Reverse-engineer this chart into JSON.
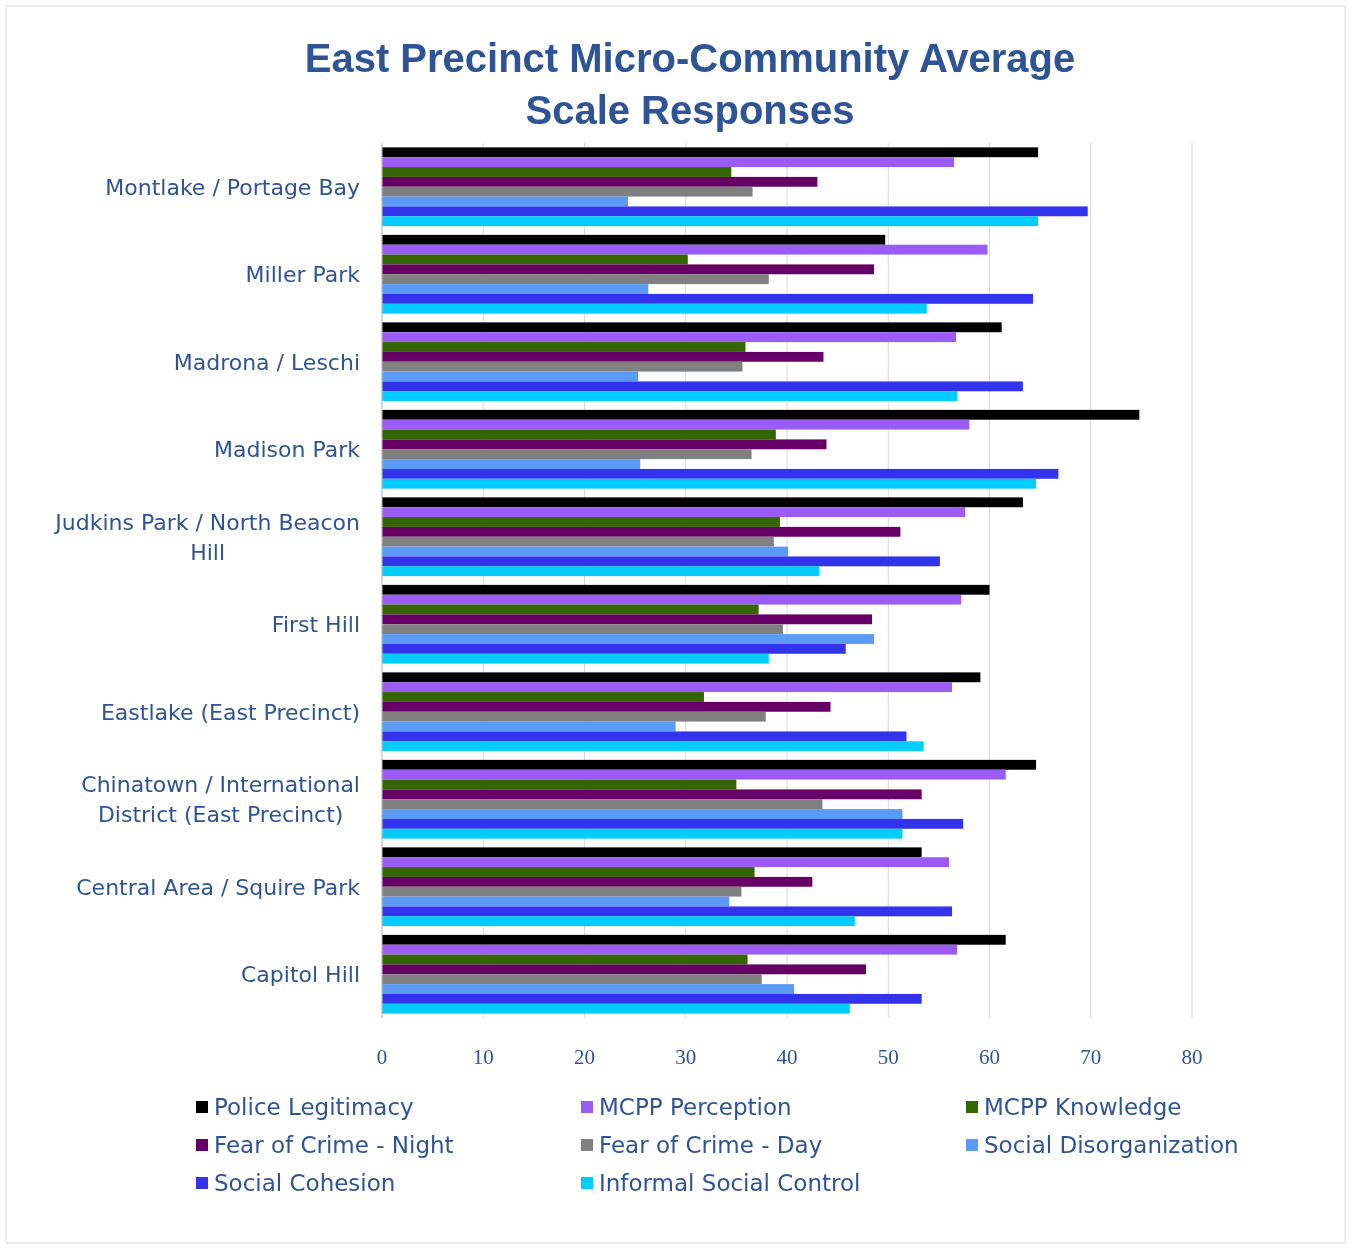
{
  "chart_data": {
    "type": "bar",
    "orientation": "horizontal",
    "title": "East Precinct Micro-Community Average Scale Responses",
    "categories": [
      "Montlake / Portage Bay",
      "Miller Park",
      "Madrona / Leschi",
      "Madison Park",
      "Judkins Park / North Beacon Hill",
      "First Hill",
      "Eastlake (East Precinct)",
      "Chinatown / International District (East Precinct)",
      "Central Area / Squire Park",
      "Capitol Hill"
    ],
    "series": [
      {
        "name": "Police Legitimacy",
        "color": "#000000",
        "values": [
          64.8,
          49.7,
          61.2,
          74.8,
          63.3,
          60.0,
          59.1,
          64.6,
          53.3,
          61.6
        ]
      },
      {
        "name": "MCPP Perception",
        "color": "#9b5cf6",
        "values": [
          56.5,
          59.8,
          56.7,
          58.0,
          57.6,
          57.2,
          56.3,
          61.6,
          56.0,
          56.8
        ]
      },
      {
        "name": "MCPP Knowledge",
        "color": "#336600",
        "values": [
          34.5,
          30.2,
          35.9,
          38.9,
          39.3,
          37.2,
          31.8,
          35.0,
          36.8,
          36.1
        ]
      },
      {
        "name": "Fear of Crime - Night",
        "color": "#660066",
        "values": [
          43.0,
          48.6,
          43.6,
          43.9,
          51.2,
          48.4,
          44.3,
          53.3,
          42.5,
          47.8
        ]
      },
      {
        "name": "Fear of Crime - Day",
        "color": "#808080",
        "values": [
          36.6,
          38.2,
          35.6,
          36.5,
          38.7,
          39.6,
          37.9,
          43.5,
          35.5,
          37.5
        ]
      },
      {
        "name": "Social Disorganization",
        "color": "#5b9bf5",
        "values": [
          24.3,
          26.3,
          25.3,
          25.5,
          40.1,
          48.6,
          29.0,
          51.4,
          34.3,
          40.7
        ]
      },
      {
        "name": "Social Cohesion",
        "color": "#3333ee",
        "values": [
          69.7,
          64.3,
          63.3,
          66.8,
          55.1,
          45.8,
          51.8,
          57.4,
          56.3,
          53.3
        ]
      },
      {
        "name": "Informal Social Control",
        "color": "#00ccff",
        "values": [
          64.8,
          53.8,
          56.8,
          64.6,
          43.2,
          38.2,
          53.5,
          51.4,
          46.7,
          46.2
        ]
      }
    ],
    "xlim": [
      0,
      80
    ],
    "xticks": [
      0,
      10,
      20,
      30,
      40,
      50,
      60,
      70,
      80
    ],
    "grid": "x",
    "legend": "bottom"
  }
}
